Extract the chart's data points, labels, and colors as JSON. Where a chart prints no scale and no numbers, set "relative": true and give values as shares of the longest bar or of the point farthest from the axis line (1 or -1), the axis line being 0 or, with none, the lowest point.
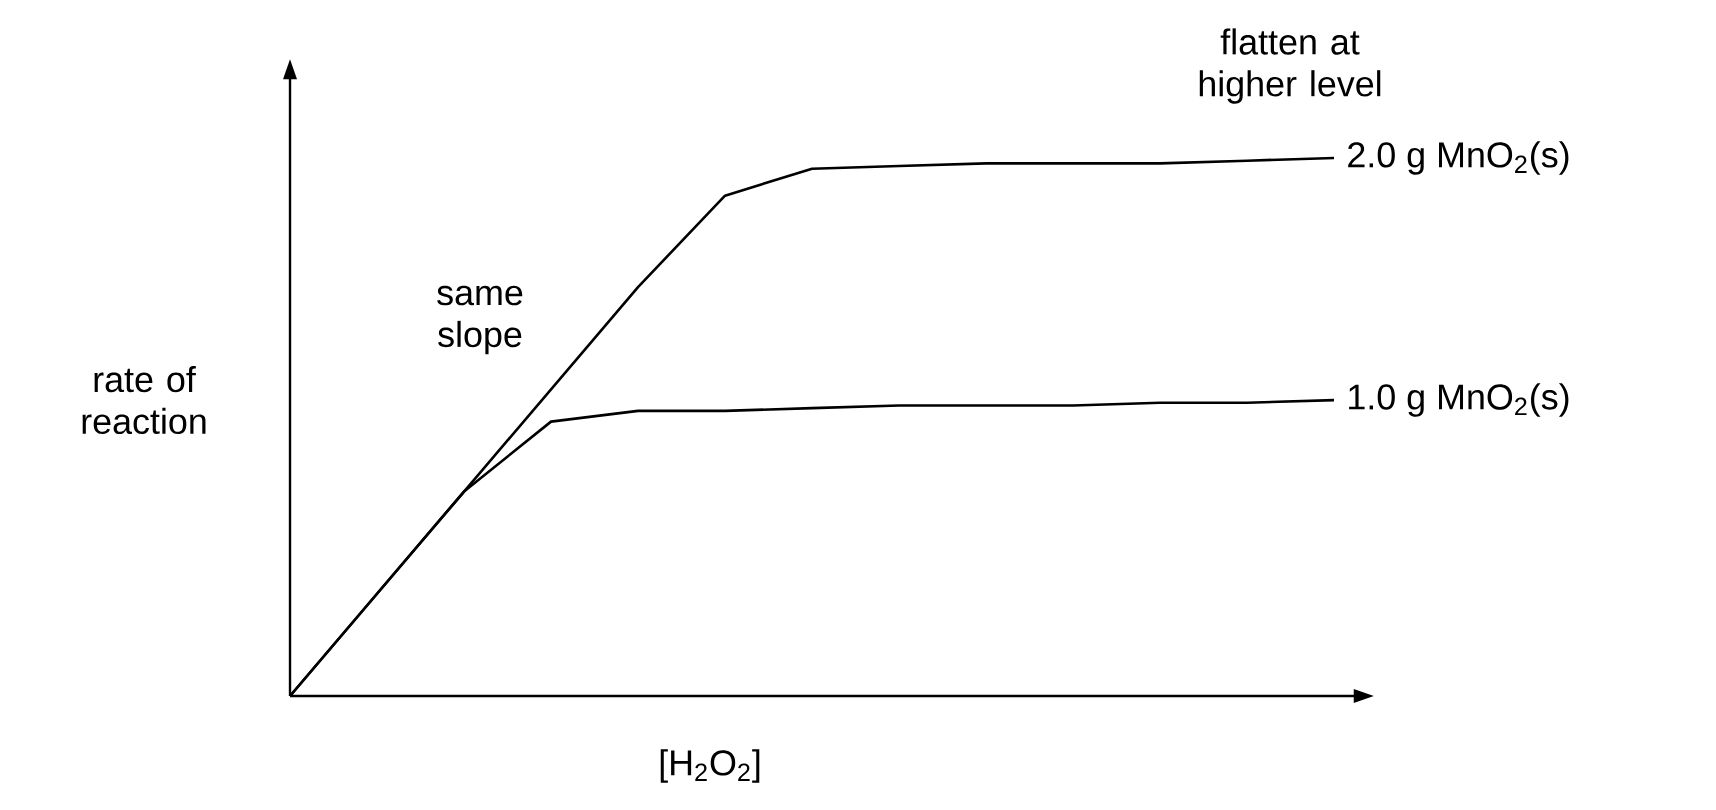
{
  "chart_data": {
    "type": "line",
    "relative": true,
    "xlabel": "[H$_{2}$O$_{2}$]",
    "ylabel": "rate of reaction",
    "categories": [
      null,
      null,
      null,
      null,
      null,
      null,
      null,
      null,
      null,
      null,
      null,
      null,
      null
    ],
    "series": [
      {
        "name": "2.0 g MnO$_{2}$(s)",
        "color": "#000000",
        "values": [
          0,
          0.19,
          0.38,
          0.57,
          0.76,
          0.93,
          0.98,
          0.985,
          0.99,
          0.99,
          0.99,
          0.995,
          1
        ]
      },
      {
        "name": "1.0 g MnO$_{2}$(s)",
        "color": "#000000",
        "values": [
          0,
          0.19,
          0.38,
          0.51,
          0.53,
          0.53,
          0.535,
          0.54,
          0.54,
          0.54,
          0.545,
          0.545,
          0.55
        ]
      }
    ],
    "annotations": [
      "same slope",
      "flatten at higher level"
    ]
  }
}
